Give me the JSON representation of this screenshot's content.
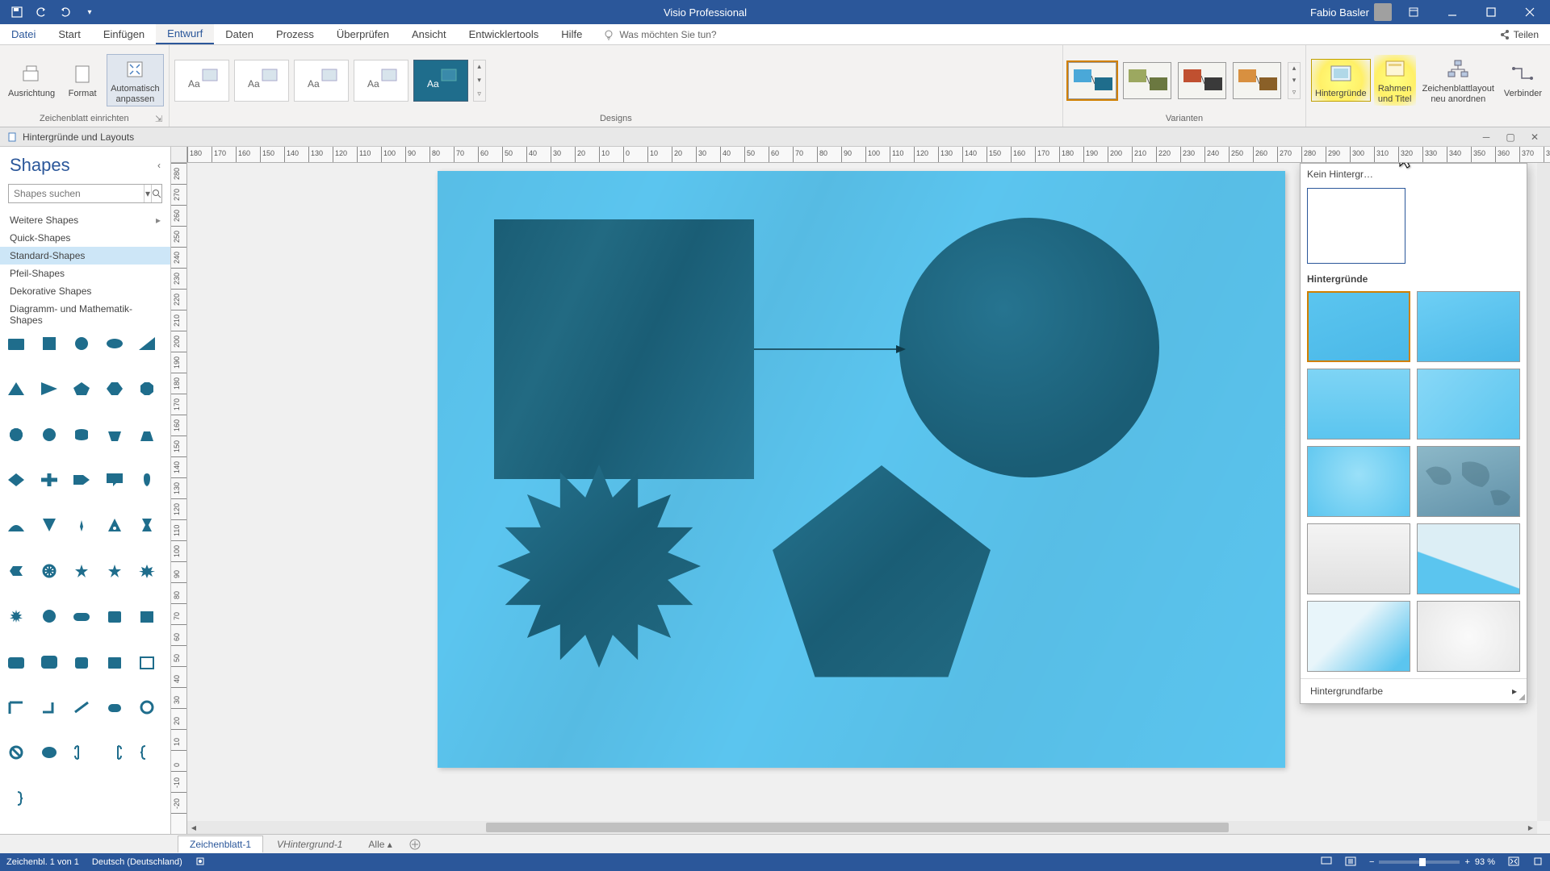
{
  "app": {
    "title": "Visio Professional"
  },
  "user": {
    "name": "Fabio Basler"
  },
  "menu": {
    "tabs": [
      "Datei",
      "Start",
      "Einfügen",
      "Entwurf",
      "Daten",
      "Prozess",
      "Überprüfen",
      "Ansicht",
      "Entwicklertools",
      "Hilfe"
    ],
    "active_index": 3,
    "tellme": "Was möchten Sie tun?",
    "share": "Teilen"
  },
  "ribbon": {
    "group1": {
      "label": "Zeichenblatt einrichten",
      "btn1": "Ausrichtung",
      "btn2": "Format",
      "btn3": "Automatisch\nanpassen"
    },
    "group2": {
      "label": "Designs"
    },
    "group3": {
      "label": "Varianten",
      "variant_colors": [
        {
          "fill": "#4aa8d8",
          "accent": "#1f6d8c"
        },
        {
          "fill": "#9ca860",
          "accent": "#6b7840"
        },
        {
          "fill": "#c05030",
          "accent": "#3a3a3a"
        },
        {
          "fill": "#d89040",
          "accent": "#8a6028"
        }
      ]
    },
    "group4": {
      "btn1": "Hintergründe",
      "btn2": "Rahmen\nund Titel",
      "btn3": "Zeichenblattlayout\nneu anordnen",
      "btn4": "Verbinder"
    }
  },
  "secondary": {
    "title": "Hintergründe und Layouts"
  },
  "shapes_panel": {
    "title": "Shapes",
    "search_placeholder": "Shapes suchen",
    "more": "Weitere Shapes",
    "cats": [
      "Quick-Shapes",
      "Standard-Shapes",
      "Pfeil-Shapes",
      "Dekorative Shapes",
      "Diagramm- und Mathematik-Shapes"
    ],
    "selected_cat": 1
  },
  "bg_dropdown": {
    "nobg": "Kein Hintergr…",
    "section": "Hintergründe",
    "footer": "Hintergrundfarbe",
    "thumbs": [
      {
        "bg": "linear-gradient(160deg,#5bc5ef,#4ab8e8)"
      },
      {
        "bg": "linear-gradient(160deg,#6ecff5,#4ab8e8)"
      },
      {
        "bg": "linear-gradient(180deg,#7ed4f5,#5bc5ef)"
      },
      {
        "bg": "linear-gradient(135deg,#88d8f7,#5bc5ef)"
      },
      {
        "bg": "radial-gradient(circle at 50% 40%,#9ae0f8,#5bc5ef)"
      },
      {
        "bg": "linear-gradient(160deg,#8cb8c8,#6090a8)",
        "map": true
      },
      {
        "bg": "linear-gradient(180deg,#f4f4f4,#e0e0e0)"
      },
      {
        "bg": "linear-gradient(200deg,#dceef5 60%,#5bc5ef 61%)"
      },
      {
        "bg": "linear-gradient(135deg,#e8f5fa 40%,#5bc5ef 90%)"
      },
      {
        "bg": "radial-gradient(circle,#fafafa,#e8e8e8)"
      }
    ]
  },
  "sheets": {
    "t1": "Zeichenblatt-1",
    "t2": "VHintergrund-1",
    "all": "Alle"
  },
  "status": {
    "pages": "Zeichenbl. 1 von 1",
    "lang": "Deutsch (Deutschland)",
    "zoom": "93 %"
  },
  "colors": {
    "shape_fill": "#1f6d8c",
    "page_bg": "#5bc5ef"
  },
  "ruler": {
    "h_start": -180,
    "h_end": 380,
    "h_step": 10,
    "v_start": 290,
    "v_end": -20,
    "v_step": 10
  }
}
